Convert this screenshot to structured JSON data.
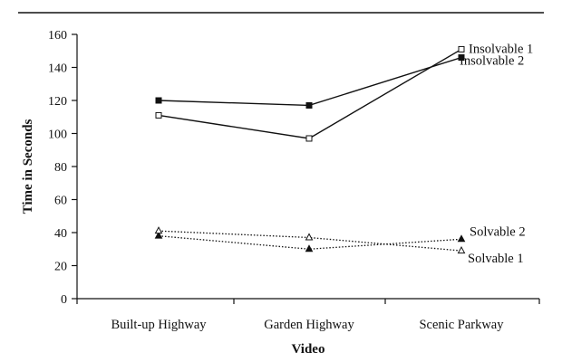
{
  "chart_data": {
    "type": "line",
    "title": "",
    "xlabel": "Video",
    "ylabel": "Time in Seconds",
    "categories": [
      "Built-up Highway",
      "Garden Highway",
      "Scenic Parkway"
    ],
    "ylim": [
      0,
      160
    ],
    "yticks": [
      "0",
      "20",
      "40",
      "60",
      "80",
      "100",
      "120",
      "140",
      "160"
    ],
    "grid": false,
    "legend": "none (series labels placed at right end of lines)",
    "series": [
      {
        "name": "Insolvable 1",
        "values": [
          111,
          97,
          151
        ],
        "line": "solid",
        "marker": "open-square"
      },
      {
        "name": "Insolvable 2",
        "values": [
          120,
          117,
          146
        ],
        "line": "solid",
        "marker": "filled-square"
      },
      {
        "name": "Solvable 2",
        "values": [
          38,
          30,
          36
        ],
        "line": "dotted",
        "marker": "filled-triangle"
      },
      {
        "name": "Solvable 1",
        "values": [
          41,
          37,
          29
        ],
        "line": "dotted",
        "marker": "open-triangle"
      }
    ]
  }
}
